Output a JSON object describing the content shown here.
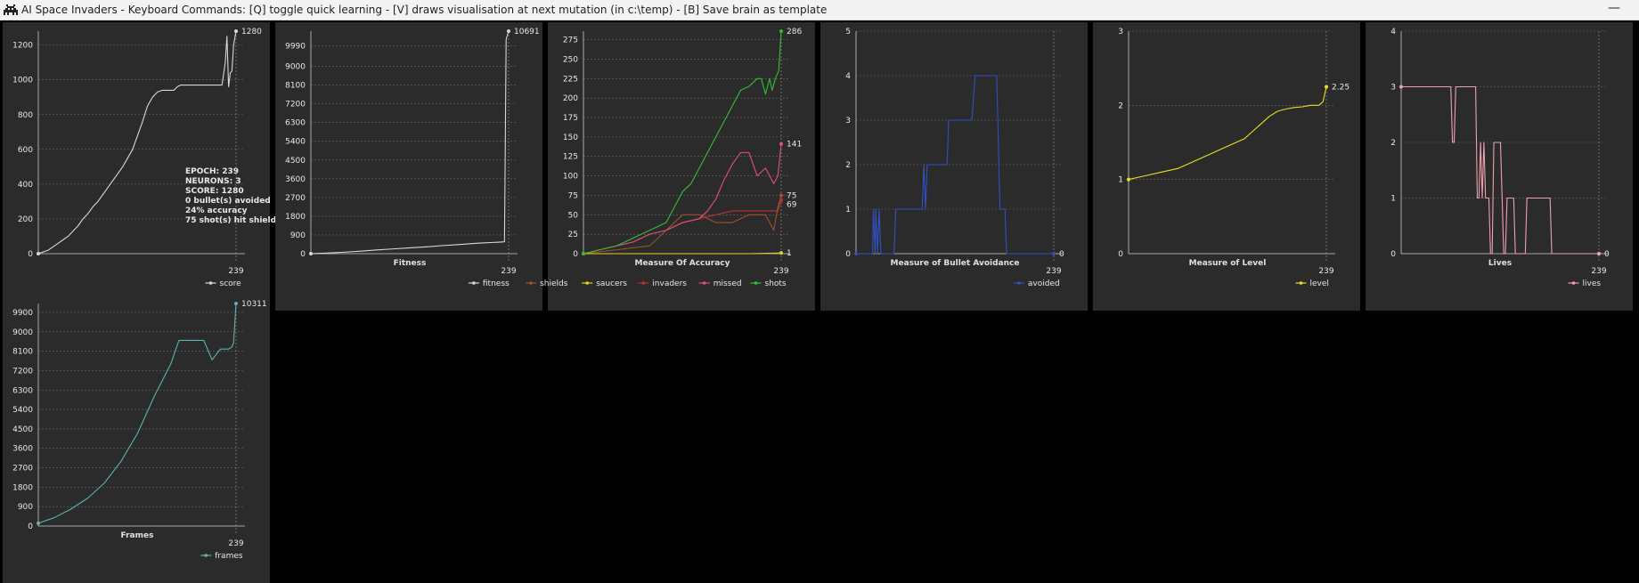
{
  "window": {
    "title": "AI Space Invaders - Keyboard Commands: [Q] toggle quick learning - [V] draws visualisation at next mutation (in c:\\temp) - [B] Save brain as template",
    "minimize_symbol": "—",
    "icon": "space-invader-icon"
  },
  "chart_data": [
    {
      "id": "score",
      "type": "line",
      "title": "",
      "xlabel": "",
      "ylabel": "",
      "xlim": [
        0,
        239
      ],
      "ylim": [
        0,
        1280
      ],
      "yticks": [
        0,
        200,
        400,
        600,
        800,
        1000,
        1200
      ],
      "x_label_value": "239",
      "series": [
        {
          "name": "score",
          "color": "#d8d8d8",
          "x": [
            0,
            6,
            12,
            18,
            24,
            30,
            36,
            42,
            48,
            54,
            60,
            66,
            72,
            78,
            84,
            90,
            96,
            102,
            108,
            114,
            120,
            126,
            132,
            138,
            144,
            150,
            156,
            160,
            164,
            168,
            172,
            176,
            180,
            186,
            192,
            198,
            204,
            210,
            216,
            222,
            226,
            228,
            230,
            232,
            234,
            236,
            239
          ],
          "y": [
            0,
            10,
            20,
            40,
            60,
            80,
            100,
            130,
            160,
            200,
            230,
            270,
            300,
            340,
            380,
            420,
            460,
            500,
            550,
            600,
            680,
            760,
            850,
            900,
            930,
            940,
            940,
            940,
            940,
            960,
            970,
            970,
            970,
            970,
            970,
            970,
            970,
            970,
            970,
            970,
            1100,
            1250,
            960,
            1040,
            1050,
            1200,
            1280
          ]
        }
      ],
      "end_labels": [
        "1280"
      ],
      "annotation": [
        "EPOCH: 239",
        "NEURONS: 3",
        "SCORE: 1280",
        "0 bullet(s) avoided",
        "24% accuracy",
        "75 shot(s) hit shield"
      ]
    },
    {
      "id": "fitness",
      "type": "line",
      "title": "Fitness",
      "xlabel": "",
      "ylabel": "",
      "xlim": [
        0,
        239
      ],
      "ylim": [
        0,
        10691
      ],
      "yticks": [
        0,
        900,
        1800,
        2700,
        3600,
        4500,
        5400,
        6300,
        7200,
        8100,
        9000,
        9990
      ],
      "x_label_value": "239",
      "series": [
        {
          "name": "fitness",
          "color": "#d8d8d8",
          "x": [
            0,
            20,
            40,
            60,
            80,
            100,
            120,
            140,
            160,
            180,
            200,
            210,
            220,
            225,
            230,
            234,
            236,
            239
          ],
          "y": [
            0,
            30,
            70,
            120,
            180,
            230,
            280,
            330,
            390,
            440,
            500,
            520,
            540,
            550,
            560,
            570,
            10300,
            10691
          ]
        }
      ],
      "end_labels": [
        "10691"
      ]
    },
    {
      "id": "accuracy",
      "type": "line",
      "title": "Measure Of Accuracy",
      "xlabel": "",
      "ylabel": "",
      "xlim": [
        0,
        239
      ],
      "ylim": [
        0,
        286
      ],
      "yticks": [
        0,
        25,
        50,
        75,
        100,
        125,
        150,
        175,
        200,
        225,
        250,
        275
      ],
      "x_label_value": "239",
      "series": [
        {
          "name": "shields",
          "color": "#a0522d",
          "x": [
            0,
            40,
            80,
            100,
            120,
            140,
            160,
            180,
            200,
            220,
            230,
            235,
            239
          ],
          "y": [
            0,
            5,
            10,
            30,
            50,
            50,
            40,
            40,
            50,
            50,
            30,
            60,
            75
          ]
        },
        {
          "name": "saucers",
          "color": "#e0d020",
          "x": [
            0,
            100,
            200,
            239
          ],
          "y": [
            0,
            0,
            0,
            1
          ]
        },
        {
          "name": "invaders",
          "color": "#c03030",
          "x": [
            0,
            20,
            40,
            60,
            80,
            100,
            120,
            140,
            160,
            180,
            200,
            220,
            235,
            239
          ],
          "y": [
            0,
            5,
            10,
            15,
            25,
            30,
            40,
            45,
            50,
            55,
            55,
            55,
            55,
            69
          ]
        },
        {
          "name": "missed",
          "color": "#e05080",
          "x": [
            0,
            20,
            40,
            60,
            80,
            100,
            120,
            140,
            150,
            160,
            170,
            180,
            190,
            200,
            210,
            220,
            230,
            235,
            239
          ],
          "y": [
            0,
            5,
            10,
            15,
            25,
            30,
            40,
            45,
            55,
            70,
            95,
            115,
            130,
            130,
            100,
            110,
            90,
            100,
            141
          ]
        },
        {
          "name": "shots",
          "color": "#30c030",
          "x": [
            0,
            20,
            40,
            60,
            80,
            100,
            110,
            120,
            130,
            140,
            150,
            160,
            170,
            180,
            190,
            200,
            210,
            215,
            220,
            225,
            228,
            232,
            236,
            239
          ],
          "y": [
            0,
            5,
            10,
            20,
            30,
            40,
            60,
            80,
            90,
            110,
            130,
            150,
            170,
            190,
            210,
            215,
            225,
            225,
            205,
            225,
            210,
            225,
            235,
            286
          ]
        }
      ],
      "end_labels": [
        "286",
        "141",
        "75",
        "69",
        "1"
      ]
    },
    {
      "id": "avoidance",
      "type": "line",
      "title": "Measure of Bullet Avoidance",
      "xlabel": "",
      "ylabel": "",
      "xlim": [
        0,
        239
      ],
      "ylim": [
        0,
        5
      ],
      "yticks": [
        0,
        1,
        2,
        3,
        4,
        5
      ],
      "x_label_value": "239",
      "series": [
        {
          "name": "avoided",
          "color": "#3050c0",
          "x": [
            0,
            20,
            21,
            23,
            24,
            26,
            28,
            30,
            46,
            48,
            80,
            82,
            84,
            86,
            110,
            112,
            140,
            144,
            170,
            174,
            180,
            182,
            186,
            188,
            239
          ],
          "y": [
            0,
            0,
            1,
            0,
            1,
            0,
            1,
            0,
            0,
            1,
            1,
            2,
            1,
            2,
            2,
            3,
            3,
            4,
            4,
            1,
            1,
            0,
            0,
            0,
            0
          ]
        }
      ],
      "end_labels": [
        "0"
      ]
    },
    {
      "id": "level",
      "type": "line",
      "title": "Measure of Level",
      "xlabel": "",
      "ylabel": "",
      "xlim": [
        0,
        239
      ],
      "ylim": [
        0,
        3
      ],
      "yticks": [
        0,
        1,
        2,
        3
      ],
      "x_label_value": "239",
      "series": [
        {
          "name": "level",
          "color": "#e8e020",
          "x": [
            0,
            20,
            40,
            60,
            80,
            100,
            120,
            140,
            150,
            160,
            170,
            180,
            190,
            200,
            210,
            220,
            230,
            235,
            239
          ],
          "y": [
            1.0,
            1.05,
            1.1,
            1.15,
            1.25,
            1.35,
            1.45,
            1.55,
            1.65,
            1.75,
            1.85,
            1.92,
            1.95,
            1.97,
            1.98,
            2.0,
            2.0,
            2.05,
            2.25
          ]
        }
      ],
      "end_labels": [
        "2.25"
      ]
    },
    {
      "id": "lives",
      "type": "line",
      "title": "Lives",
      "xlabel": "",
      "ylabel": "",
      "xlim": [
        0,
        239
      ],
      "ylim": [
        0,
        4
      ],
      "yticks": [
        0,
        1,
        2,
        3,
        4
      ],
      "x_label_value": "239",
      "series": [
        {
          "name": "lives",
          "color": "#f0a0b0",
          "x": [
            0,
            60,
            62,
            64,
            66,
            90,
            92,
            94,
            96,
            98,
            100,
            102,
            104,
            106,
            108,
            110,
            112,
            120,
            122,
            124,
            126,
            128,
            136,
            138,
            150,
            152,
            160,
            180,
            182,
            186,
            239
          ],
          "y": [
            3,
            3,
            2,
            2,
            3,
            3,
            1,
            1,
            2,
            1,
            2,
            1,
            1,
            1,
            0,
            0,
            2,
            2,
            1,
            0,
            0,
            1,
            1,
            0,
            0,
            1,
            1,
            1,
            0,
            0,
            0
          ]
        }
      ],
      "end_labels": [
        "0"
      ]
    },
    {
      "id": "frames",
      "type": "line",
      "title": "Frames",
      "xlabel": "",
      "ylabel": "",
      "xlim": [
        0,
        239
      ],
      "ylim": [
        0,
        10311
      ],
      "yticks": [
        0,
        900,
        1800,
        2700,
        3600,
        4500,
        5400,
        6300,
        7200,
        8100,
        9000,
        9900
      ],
      "x_label_value": "239",
      "series": [
        {
          "name": "frames",
          "color": "#5fb0b0",
          "x": [
            0,
            20,
            40,
            60,
            80,
            100,
            120,
            140,
            160,
            170,
            180,
            190,
            200,
            210,
            220,
            230,
            234,
            236,
            239
          ],
          "y": [
            130,
            400,
            800,
            1300,
            2000,
            3000,
            4300,
            6000,
            7500,
            8600,
            8600,
            8600,
            8600,
            7700,
            8200,
            8200,
            8300,
            8500,
            10311
          ]
        }
      ],
      "end_labels": [
        "10311"
      ]
    }
  ]
}
